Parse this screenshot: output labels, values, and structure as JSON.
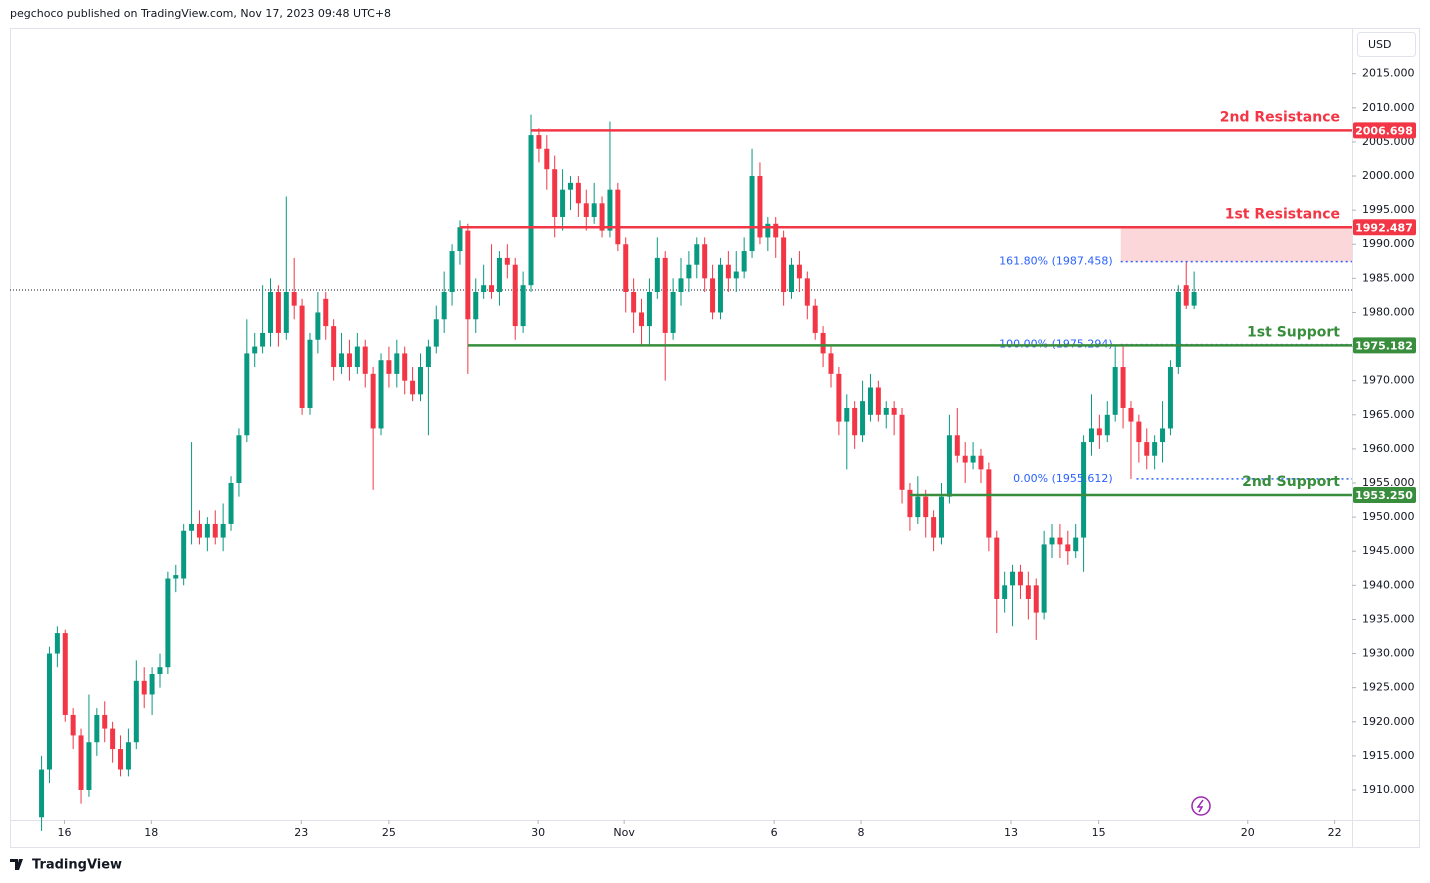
{
  "chart_data": {
    "type": "candlestick",
    "title": "pegchoco published on TradingView.com, Nov 17, 2023 09:48 UTC+8",
    "currency": "USD",
    "brand": "TradingView",
    "up_color": "#089981",
    "down_color": "#f23645",
    "xlim": [
      -4,
      166
    ],
    "ylim": [
      1905.6,
      2021.7
    ],
    "xticks": [
      {
        "value": 2.9,
        "label": "16"
      },
      {
        "value": 13.9,
        "label": "18"
      },
      {
        "value": 32.9,
        "label": "23"
      },
      {
        "value": 44,
        "label": "25"
      },
      {
        "value": 62.9,
        "label": "30"
      },
      {
        "value": 73.8,
        "label": "Nov"
      },
      {
        "value": 92.8,
        "label": "6"
      },
      {
        "value": 103.8,
        "label": "8"
      },
      {
        "value": 122.8,
        "label": "13"
      },
      {
        "value": 133.9,
        "label": "15"
      },
      {
        "value": 152.8,
        "label": "20"
      },
      {
        "value": 163.8,
        "label": "22"
      }
    ],
    "yticks": [
      {
        "value": 1910,
        "label": "1910.000"
      },
      {
        "value": 1915,
        "label": "1915.000"
      },
      {
        "value": 1920,
        "label": "1920.000"
      },
      {
        "value": 1925,
        "label": "1925.000"
      },
      {
        "value": 1930,
        "label": "1930.000"
      },
      {
        "value": 1935,
        "label": "1935.000"
      },
      {
        "value": 1940,
        "label": "1940.000"
      },
      {
        "value": 1945,
        "label": "1945.000"
      },
      {
        "value": 1950,
        "label": "1950.000"
      },
      {
        "value": 1955,
        "label": "1955.000"
      },
      {
        "value": 1960,
        "label": "1960.000"
      },
      {
        "value": 1965,
        "label": "1965.000"
      },
      {
        "value": 1970,
        "label": "1970.000"
      },
      {
        "value": 1975,
        "label": "1975.000"
      },
      {
        "value": 1980,
        "label": "1980.000"
      },
      {
        "value": 1985,
        "label": "1985.000"
      },
      {
        "value": 1990,
        "label": "1990.000"
      },
      {
        "value": 1995,
        "label": "1995.000"
      },
      {
        "value": 2000,
        "label": "2000.000"
      },
      {
        "value": 2005,
        "label": "2005.000"
      },
      {
        "value": 2010,
        "label": "2010.000"
      },
      {
        "value": 2015,
        "label": "2015.000"
      }
    ],
    "last_price": 1983.3,
    "levels": [
      {
        "name": "2nd Resistance",
        "value": 2006.698,
        "label": "2006.698",
        "color": "#f23645",
        "from": 62
      },
      {
        "name": "1st Resistance",
        "value": 1992.487,
        "label": "1992.487",
        "color": "#f23645",
        "from": 53
      },
      {
        "name": "1st Support",
        "value": 1975.182,
        "label": "1975.182",
        "color": "#388e3c",
        "from": 54
      },
      {
        "name": "2nd Support",
        "value": 1953.25,
        "label": "1953.250",
        "color": "#388e3c",
        "from": 110
      }
    ],
    "fib": [
      {
        "label": "161.80% (1987.458)",
        "value": 1987.458,
        "from": 136.7
      },
      {
        "label": "100.00% (1975.294)",
        "value": 1975.294,
        "from": 136.7
      },
      {
        "label": "0.00% (1955.612)",
        "value": 1955.612,
        "from": 138.7
      }
    ],
    "zone": {
      "from": 136.7,
      "low": 1987.458,
      "high": 1992.487,
      "color": "#fcd7d9"
    },
    "candles": [
      [
        1906,
        1915,
        1904,
        1913
      ],
      [
        1913,
        1931,
        1911,
        1930
      ],
      [
        1930,
        1934,
        1928,
        1933
      ],
      [
        1933,
        1933.5,
        1920,
        1921
      ],
      [
        1921,
        1922,
        1916,
        1918
      ],
      [
        1918,
        1919,
        1908,
        1910
      ],
      [
        1910,
        1924,
        1909,
        1917
      ],
      [
        1917,
        1922,
        1915,
        1921
      ],
      [
        1921,
        1923,
        1917,
        1919
      ],
      [
        1919,
        1920,
        1914,
        1916
      ],
      [
        1916,
        1918,
        1912,
        1913
      ],
      [
        1913,
        1919,
        1912,
        1917
      ],
      [
        1917,
        1929,
        1916,
        1926
      ],
      [
        1926,
        1928,
        1922,
        1924
      ],
      [
        1924,
        1928,
        1921,
        1927
      ],
      [
        1927,
        1930,
        1925,
        1928
      ],
      [
        1928,
        1942,
        1927,
        1941
      ],
      [
        1941,
        1943,
        1939,
        1941.5
      ],
      [
        1941,
        1949,
        1940,
        1948
      ],
      [
        1948,
        1961,
        1946,
        1949
      ],
      [
        1949,
        1951,
        1946,
        1947
      ],
      [
        1947,
        1950,
        1945,
        1949
      ],
      [
        1949,
        1951,
        1946,
        1947
      ],
      [
        1947,
        1952,
        1945,
        1949
      ],
      [
        1949,
        1956,
        1948,
        1955
      ],
      [
        1955,
        1963,
        1953,
        1962
      ],
      [
        1962,
        1979,
        1961,
        1974
      ],
      [
        1974,
        1977,
        1972,
        1975
      ],
      [
        1975,
        1984,
        1974,
        1977
      ],
      [
        1977,
        1985,
        1975,
        1983
      ],
      [
        1983,
        1984,
        1975,
        1977
      ],
      [
        1977,
        1997,
        1976,
        1983
      ],
      [
        1983,
        1988,
        1979,
        1981
      ],
      [
        1981,
        1982,
        1965,
        1966
      ],
      [
        1966,
        1977,
        1965,
        1976
      ],
      [
        1976,
        1983,
        1974,
        1980
      ],
      [
        1982,
        1983,
        1976,
        1978
      ],
      [
        1978,
        1979,
        1970,
        1972
      ],
      [
        1972,
        1977,
        1971,
        1974
      ],
      [
        1974,
        1976,
        1970,
        1972
      ],
      [
        1972,
        1977,
        1971,
        1975
      ],
      [
        1975,
        1976,
        1969,
        1971
      ],
      [
        1971,
        1972,
        1954,
        1963
      ],
      [
        1963,
        1974,
        1962,
        1973
      ],
      [
        1973,
        1975,
        1969,
        1971
      ],
      [
        1971,
        1976,
        1969,
        1974
      ],
      [
        1974,
        1975,
        1968,
        1970
      ],
      [
        1970,
        1972,
        1967,
        1968
      ],
      [
        1968,
        1974,
        1967,
        1972
      ],
      [
        1972,
        1976,
        1962,
        1975
      ],
      [
        1975,
        1981,
        1974,
        1979
      ],
      [
        1979,
        1986,
        1977,
        1983
      ],
      [
        1983,
        1990,
        1981,
        1989
      ],
      [
        1989,
        1993.5,
        1987,
        1992.5
      ],
      [
        1992,
        1993,
        1971,
        1979
      ],
      [
        1979,
        1985,
        1977,
        1983
      ],
      [
        1983,
        1987,
        1982,
        1984
      ],
      [
        1984,
        1990,
        1982,
        1983
      ],
      [
        1983,
        1989,
        1981,
        1988
      ],
      [
        1988,
        1990,
        1985,
        1987
      ],
      [
        1987,
        1988,
        1976,
        1978
      ],
      [
        1978,
        1986,
        1977,
        1984
      ],
      [
        1984,
        2009,
        1983,
        2006
      ],
      [
        2006,
        2007,
        2002,
        2004
      ],
      [
        2004,
        2006,
        1998,
        2001
      ],
      [
        2001,
        2003,
        1991,
        1994
      ],
      [
        1994,
        2001,
        1992,
        1998
      ],
      [
        1998,
        2000,
        1995,
        1999
      ],
      [
        1999,
        2000,
        1994,
        1996
      ],
      [
        1996,
        1998,
        1992,
        1994
      ],
      [
        1994,
        1999,
        1993,
        1996
      ],
      [
        1996,
        1997,
        1991,
        1992
      ],
      [
        1992,
        2008,
        1991,
        1998
      ],
      [
        1998,
        1999,
        1989,
        1990
      ],
      [
        1990,
        1991,
        1980,
        1983
      ],
      [
        1983,
        1985,
        1977,
        1980
      ],
      [
        1980,
        1982,
        1975,
        1978
      ],
      [
        1978,
        1985,
        1975,
        1983
      ],
      [
        1983,
        1991,
        1982,
        1988
      ],
      [
        1988,
        1989,
        1970,
        1977
      ],
      [
        1977,
        1985,
        1976,
        1983
      ],
      [
        1983,
        1988,
        1981,
        1985
      ],
      [
        1985,
        1989,
        1983,
        1987
      ],
      [
        1987,
        1991,
        1985,
        1990
      ],
      [
        1990,
        1991,
        1983,
        1985
      ],
      [
        1985,
        1987,
        1979,
        1980
      ],
      [
        1980,
        1988,
        1979,
        1987
      ],
      [
        1987,
        1989,
        1983,
        1985
      ],
      [
        1985,
        1989,
        1983,
        1986
      ],
      [
        1986,
        1991,
        1985,
        1989
      ],
      [
        1989,
        2004,
        1988,
        2000
      ],
      [
        2000,
        2002,
        1990,
        1991
      ],
      [
        1991,
        1994,
        1989,
        1993
      ],
      [
        1993,
        1994,
        1988,
        1991
      ],
      [
        1991,
        1992,
        1981,
        1983
      ],
      [
        1983,
        1988,
        1982,
        1987
      ],
      [
        1987,
        1989,
        1983,
        1985
      ],
      [
        1985,
        1986,
        1979,
        1981
      ],
      [
        1981,
        1982,
        1976,
        1977
      ],
      [
        1977,
        1978,
        1972,
        1974
      ],
      [
        1974,
        1975,
        1969,
        1971
      ],
      [
        1971,
        1972,
        1962,
        1964
      ],
      [
        1964,
        1968,
        1957,
        1966
      ],
      [
        1966,
        1967,
        1960,
        1962
      ],
      [
        1962,
        1970,
        1961,
        1967
      ],
      [
        1965,
        1971,
        1964,
        1969
      ],
      [
        1969,
        1970,
        1964,
        1965
      ],
      [
        1965,
        1967,
        1963,
        1966
      ],
      [
        1966,
        1967,
        1962,
        1965
      ],
      [
        1965,
        1966,
        1952,
        1954
      ],
      [
        1954,
        1955,
        1948,
        1950
      ],
      [
        1950,
        1956,
        1949,
        1953
      ],
      [
        1953,
        1954,
        1947,
        1950
      ],
      [
        1950,
        1951,
        1945,
        1947
      ],
      [
        1947,
        1955,
        1946,
        1953
      ],
      [
        1953,
        1965,
        1952,
        1962
      ],
      [
        1962,
        1966,
        1958,
        1959
      ],
      [
        1959,
        1961,
        1955,
        1958
      ],
      [
        1958,
        1961,
        1957,
        1959
      ],
      [
        1959,
        1960,
        1955,
        1957
      ],
      [
        1957,
        1958,
        1945,
        1947
      ],
      [
        1947,
        1948,
        1933,
        1938
      ],
      [
        1938,
        1942,
        1936,
        1940
      ],
      [
        1940,
        1943,
        1934,
        1942
      ],
      [
        1942,
        1943,
        1938,
        1940
      ],
      [
        1940,
        1942,
        1935,
        1938
      ],
      [
        1940,
        1941,
        1932,
        1936
      ],
      [
        1936,
        1948,
        1935,
        1946
      ],
      [
        1946,
        1949,
        1944,
        1947
      ],
      [
        1947,
        1949,
        1944,
        1946
      ],
      [
        1946,
        1948,
        1943,
        1945
      ],
      [
        1945,
        1949,
        1944,
        1947
      ],
      [
        1947,
        1962,
        1942,
        1961
      ],
      [
        1961,
        1968,
        1959,
        1963
      ],
      [
        1963,
        1965,
        1960,
        1962
      ],
      [
        1962,
        1967,
        1961,
        1965
      ],
      [
        1965,
        1975.3,
        1964,
        1972
      ],
      [
        1972,
        1975,
        1963,
        1966
      ],
      [
        1966,
        1967,
        1955.6,
        1964
      ],
      [
        1964,
        1965,
        1958,
        1961
      ],
      [
        1961,
        1963,
        1957,
        1959
      ],
      [
        1959,
        1962,
        1957,
        1961
      ],
      [
        1961,
        1967,
        1958,
        1963
      ],
      [
        1963,
        1973,
        1962,
        1972
      ],
      [
        1972,
        1984,
        1971,
        1983
      ],
      [
        1984,
        1987.5,
        1980.5,
        1981
      ],
      [
        1981,
        1986,
        1980.5,
        1983
      ]
    ]
  }
}
